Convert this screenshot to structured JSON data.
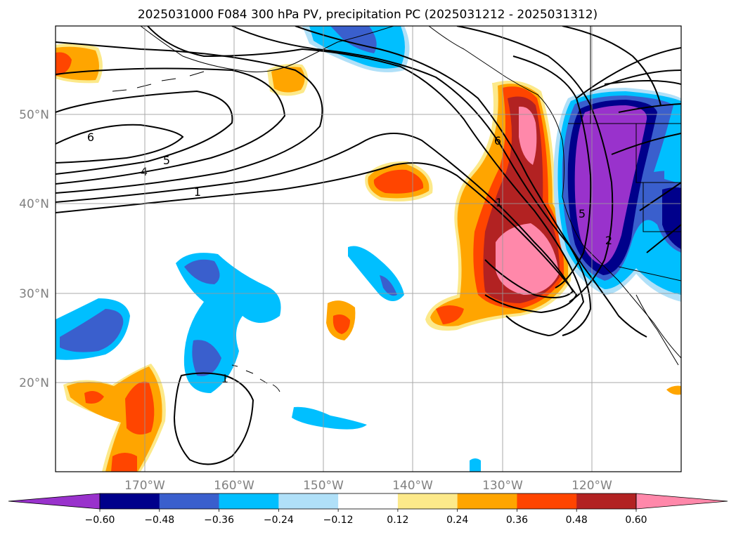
{
  "title": "2025031000 F084 300 hPa PV, precipitation PC (2025031212 - 2025031312)",
  "map": {
    "lat_labels": [
      {
        "value": 50,
        "text": "50°N"
      },
      {
        "value": 40,
        "text": "40°N"
      },
      {
        "value": 30,
        "text": "30°N"
      },
      {
        "value": 20,
        "text": "20°N"
      }
    ],
    "lon_labels": [
      {
        "value": -170,
        "text": "170°W"
      },
      {
        "value": -160,
        "text": "160°W"
      },
      {
        "value": -150,
        "text": "150°W"
      },
      {
        "value": -140,
        "text": "140°W"
      },
      {
        "value": -130,
        "text": "130°W"
      },
      {
        "value": -120,
        "text": "120°W"
      }
    ],
    "contour_labels": [
      "6",
      "5",
      "4",
      "1",
      "1",
      "6",
      "1",
      "5",
      "2"
    ]
  },
  "colorbar": {
    "labels": [
      "−0.60",
      "−0.48",
      "−0.36",
      "−0.24",
      "−0.12",
      "0.12",
      "0.24",
      "0.36",
      "0.48",
      "0.60"
    ],
    "colors": [
      "#9932cc",
      "#00008b",
      "#3a5fcd",
      "#00bfff",
      "#b0e0f8",
      "#ffffff",
      "#fce98a",
      "#ffa500",
      "#ff4500",
      "#b22222",
      "#ff88aa"
    ]
  }
}
